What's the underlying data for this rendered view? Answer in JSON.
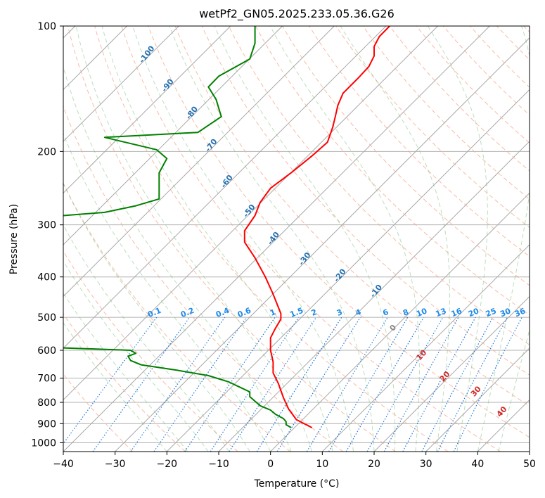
{
  "chart_data": {
    "type": "line",
    "subtype": "skew-t log-p diagram",
    "title": "wetPf2_GN05.2025.233.05.36.G26",
    "xlabel": "Temperature (°C)",
    "ylabel": "Pressure (hPa)",
    "xlim": [
      -40,
      50
    ],
    "ylim": [
      1050,
      100
    ],
    "y_scale": "log",
    "x_ticks": [
      -40,
      -30,
      -20,
      -10,
      0,
      10,
      20,
      30,
      40,
      50
    ],
    "y_ticks": [
      100,
      200,
      300,
      400,
      500,
      600,
      700,
      800,
      900,
      1000
    ],
    "grid": "on",
    "series": [
      {
        "role": "temperature",
        "color": "#ff0000",
        "points": [
          [
            8,
            920
          ],
          [
            5,
            880
          ],
          [
            3.5,
            830
          ],
          [
            2.5,
            780
          ],
          [
            1.5,
            720
          ],
          [
            0.5,
            680
          ],
          [
            0.5,
            640
          ],
          [
            0,
            600
          ],
          [
            0,
            560
          ],
          [
            1,
            530
          ],
          [
            2,
            505
          ],
          [
            2,
            490
          ],
          [
            0.5,
            440
          ],
          [
            -1,
            400
          ],
          [
            -3,
            360
          ],
          [
            -5,
            330
          ],
          [
            -5,
            310
          ],
          [
            -3,
            285
          ],
          [
            -2,
            265
          ],
          [
            0,
            245
          ],
          [
            4,
            225
          ],
          [
            8,
            205
          ],
          [
            11,
            190
          ],
          [
            12,
            175
          ],
          [
            12.5,
            165
          ],
          [
            13,
            155
          ],
          [
            14,
            145
          ],
          [
            17,
            133
          ],
          [
            19,
            125
          ],
          [
            20,
            118
          ],
          [
            20,
            112
          ],
          [
            21,
            106
          ],
          [
            23,
            100
          ]
        ]
      },
      {
        "role": "dewpoint",
        "color": "#008000",
        "points": [
          [
            4,
            920
          ],
          [
            3,
            905
          ],
          [
            3,
            890
          ],
          [
            2.5,
            875
          ],
          [
            1,
            855
          ],
          [
            0,
            835
          ],
          [
            -2,
            815
          ],
          [
            -3,
            795
          ],
          [
            -4,
            775
          ],
          [
            -4,
            755
          ],
          [
            -6,
            735
          ],
          [
            -8,
            715
          ],
          [
            -12,
            690
          ],
          [
            -18,
            670
          ],
          [
            -25,
            650
          ],
          [
            -27,
            635
          ],
          [
            -27.5,
            620
          ],
          [
            -26,
            610
          ],
          [
            -27,
            600
          ],
          [
            -40,
            592
          ]
        ]
      },
      {
        "role": "dewpoint-upper",
        "color": "#008000",
        "points": [
          [
            -40,
            285
          ],
          [
            -32,
            280
          ],
          [
            -26,
            270
          ],
          [
            -21.5,
            260
          ],
          [
            -21.5,
            245
          ],
          [
            -21.5,
            225
          ],
          [
            -20,
            208
          ],
          [
            -22,
            198
          ],
          [
            -32,
            185
          ],
          [
            -14,
            180
          ],
          [
            -9.5,
            165
          ],
          [
            -10.5,
            150
          ],
          [
            -12,
            140
          ],
          [
            -10,
            132
          ],
          [
            -4,
            120
          ],
          [
            -3,
            110
          ],
          [
            -3,
            100
          ]
        ]
      }
    ],
    "isotherm_labels": [
      "-100",
      "-90",
      "-80",
      "-70",
      "-60",
      "-50",
      "-40",
      "-30",
      "-20",
      "-10"
    ],
    "mixing_ratio_labels": [
      "0.1",
      "0.2",
      "0.4",
      "0.6",
      "1",
      "1.5",
      "2",
      "3",
      "4",
      "6",
      "8",
      "10",
      "13",
      "16",
      "20",
      "25",
      "30",
      "36"
    ],
    "moist_adiabat_labels": [
      "0",
      "10",
      "20",
      "30",
      "40"
    ]
  }
}
